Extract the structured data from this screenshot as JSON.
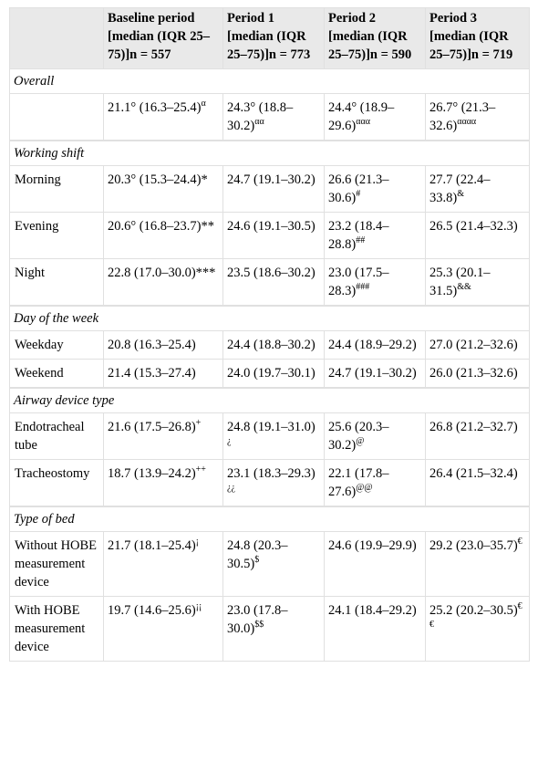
{
  "table": {
    "header": [
      {
        "label": "Baseline period [median (IQR 25–75)]",
        "n": "n = 557"
      },
      {
        "label": "Period 1 [median (IQR 25–75)]",
        "n": "n = 773"
      },
      {
        "label": "Period 2 [median (IQR 25–75)]",
        "n": "n = 590"
      },
      {
        "label": "Period 3 [median (IQR 25–75)]",
        "n": "n = 719"
      }
    ],
    "sections": [
      {
        "title": "Overall",
        "rows": [
          {
            "label": null,
            "cells": [
              {
                "text": "21.1° (16.3–25.4)",
                "sup": "α"
              },
              {
                "text": "24.3° (18.8–30.2)",
                "sup": "αα"
              },
              {
                "text": "24.4° (18.9–29.6)",
                "sup": "ααα"
              },
              {
                "text": "26.7° (21.3–32.6)",
                "sup": "αααα"
              }
            ]
          }
        ]
      },
      {
        "title": "Working shift",
        "rows": [
          {
            "label": "Morning",
            "cells": [
              {
                "text": "20.3° (15.3–24.4)*"
              },
              {
                "text": "24.7 (19.1–30.2)"
              },
              {
                "text": "26.6 (21.3–30.6)",
                "sup": "#"
              },
              {
                "text": "27.7 (22.4–33.8)",
                "sup": "&"
              }
            ]
          },
          {
            "label": "Evening",
            "cells": [
              {
                "text": "20.6° (16.8–23.7)**"
              },
              {
                "text": "24.6 (19.1–30.5)"
              },
              {
                "text": "23.2 (18.4–28.8)",
                "sup": "##"
              },
              {
                "text": "26.5 (21.4–32.3)"
              }
            ]
          },
          {
            "label": "Night",
            "cells": [
              {
                "text": "22.8 (17.0–30.0)***"
              },
              {
                "text": "23.5 (18.6–30.2)"
              },
              {
                "text": "23.0 (17.5–28.3)",
                "sup": "###"
              },
              {
                "text": "25.3 (20.1–31.5)",
                "sup": "&&"
              }
            ]
          }
        ]
      },
      {
        "title": "Day of the week",
        "rows": [
          {
            "label": "Weekday",
            "cells": [
              {
                "text": "20.8 (16.3–25.4)"
              },
              {
                "text": "24.4 (18.8–30.2)"
              },
              {
                "text": "24.4 (18.9–29.2)"
              },
              {
                "text": "27.0 (21.2–32.6)"
              }
            ]
          },
          {
            "label": "Weekend",
            "cells": [
              {
                "text": "21.4 (15.3–27.4)"
              },
              {
                "text": "24.0 (19.7–30.1)"
              },
              {
                "text": "24.7 (19.1–30.2)"
              },
              {
                "text": "26.0 (21.3–32.6)"
              }
            ]
          }
        ]
      },
      {
        "title": "Airway device type",
        "rows": [
          {
            "label": "Endotracheal tube",
            "cells": [
              {
                "text": "21.6 (17.5–26.8)",
                "sup": "+"
              },
              {
                "text": "24.8 (19.1–31.0)",
                "sup": "¿"
              },
              {
                "text": "25.6 (20.3–30.2)",
                "sup": "@"
              },
              {
                "text": "26.8 (21.2–32.7)"
              }
            ]
          },
          {
            "label": "Tracheostomy",
            "cells": [
              {
                "text": "18.7 (13.9–24.2)",
                "sup": "++"
              },
              {
                "text": "23.1 (18.3–29.3)",
                "sup": "¿¿"
              },
              {
                "text": "22.1 (17.8–27.6)",
                "sup": "@@"
              },
              {
                "text": "26.4 (21.5–32.4)"
              }
            ]
          }
        ]
      },
      {
        "title": "Type of bed",
        "rows": [
          {
            "label": "Without HOBE measurement device",
            "cells": [
              {
                "text": "21.7 (18.1–25.4)",
                "sup": "¡"
              },
              {
                "text": "24.8 (20.3–30.5)",
                "sup": "$"
              },
              {
                "text": "24.6 (19.9–29.9)"
              },
              {
                "text": "29.2 (23.0–35.7)",
                "sup": "€"
              }
            ]
          },
          {
            "label": "With HOBE measurement device",
            "cells": [
              {
                "text": "19.7 (14.6–25.6)",
                "sup": "¡¡"
              },
              {
                "text": "23.0 (17.8–30.0)",
                "sup": "$$"
              },
              {
                "text": "24.1 (18.4–29.2)"
              },
              {
                "text": "25.2 (20.2–30.5)",
                "sup": "€€"
              }
            ]
          }
        ]
      }
    ]
  }
}
